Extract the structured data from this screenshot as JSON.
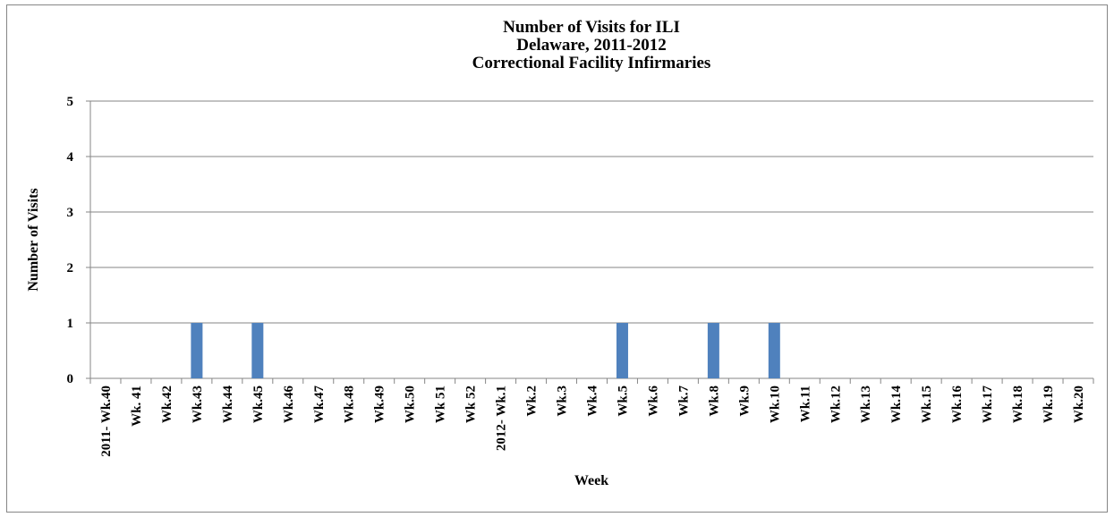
{
  "chart_data": {
    "type": "bar",
    "title": [
      "Number of Visits for ILI",
      "Delaware, 2011-2012",
      "Correctional Facility Infirmaries"
    ],
    "x_label": "Week",
    "y_label": "Number of Visits",
    "categories": [
      "2011- Wk.40",
      "Wk. 41",
      "Wk.42",
      "Wk.43",
      "Wk.44",
      "Wk.45",
      "Wk.46",
      "Wk.47",
      "Wk.48",
      "Wk.49",
      "Wk.50",
      "Wk 51",
      "Wk 52",
      "2012- Wk.1",
      "Wk.2",
      "Wk.3",
      "Wk.4",
      "Wk.5",
      "Wk.6",
      "Wk.7",
      "Wk.8",
      "Wk.9",
      "Wk.10",
      "Wk.11",
      "Wk.12",
      "Wk.13",
      "Wk.14",
      "Wk.15",
      "Wk.16",
      "Wk.17",
      "Wk.18",
      "Wk.19",
      "Wk.20"
    ],
    "values": [
      0,
      0,
      0,
      1,
      0,
      1,
      0,
      0,
      0,
      0,
      0,
      0,
      0,
      0,
      0,
      0,
      0,
      1,
      0,
      0,
      1,
      0,
      1,
      0,
      0,
      0,
      0,
      0,
      0,
      0,
      0,
      0,
      0
    ],
    "color": "#4f81bd",
    "ylim": [
      0,
      5
    ],
    "yticks": [
      0,
      1,
      2,
      3,
      4,
      5
    ],
    "grid": true
  }
}
